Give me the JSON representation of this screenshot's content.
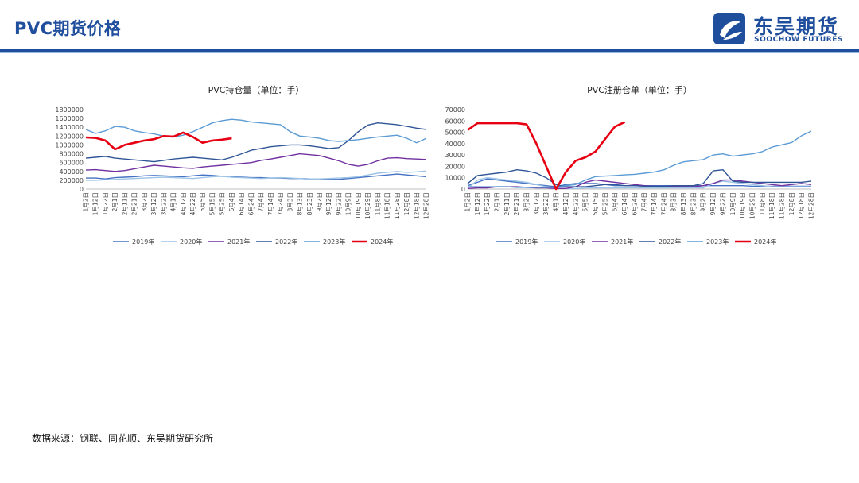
{
  "header": {
    "title": "PVC期货价格"
  },
  "logo": {
    "cn": "东吴期货",
    "en": "SOOCHOW FUTURES"
  },
  "source_note": "数据来源：钢联、同花顺、东吴期货研究所",
  "colors": {
    "2019年": "#4472c4",
    "2020年": "#9dc3e6",
    "2021年": "#7030a0",
    "2022年": "#2f5597",
    "2023年": "#5b9bd5",
    "2024年": "#e60012",
    "brand": "#1f4e9c"
  },
  "chart_data": [
    {
      "type": "line",
      "title": "PVC持仓量（单位：手）",
      "ylim": [
        0,
        1800000
      ],
      "yticks": [
        0,
        200000,
        400000,
        600000,
        800000,
        1000000,
        1200000,
        1400000,
        1600000,
        1800000
      ],
      "x_tick_labels": [
        "1月2日",
        "1月12日",
        "1月22日",
        "2月1日",
        "2月11日",
        "2月21日",
        "3月2日",
        "3月12日",
        "3月22日",
        "4月1日",
        "4月12日",
        "4月22日",
        "5月5日",
        "5月15日",
        "5月25日",
        "6月4日",
        "6月14日",
        "6月24日",
        "7月4日",
        "7月14日",
        "7月24日",
        "8月3日",
        "8月13日",
        "8月23日",
        "9月2日",
        "9月12日",
        "9月22日",
        "10月9日",
        "10月19日",
        "10月29日",
        "11月8日",
        "11月18日",
        "11月28日",
        "12月8日",
        "12月18日",
        "12月28日"
      ],
      "legend": [
        "2019年",
        "2020年",
        "2021年",
        "2022年",
        "2023年",
        "2024年"
      ],
      "legend_position": "bottom",
      "series": [
        {
          "name": "2019年",
          "values": [
            250000,
            250000,
            230000,
            260000,
            270000,
            280000,
            300000,
            310000,
            300000,
            290000,
            280000,
            300000,
            320000,
            310000,
            290000,
            280000,
            270000,
            260000,
            260000,
            250000,
            250000,
            240000,
            240000,
            230000,
            230000,
            220000,
            220000,
            240000,
            260000,
            280000,
            300000,
            320000,
            340000,
            320000,
            300000,
            280000
          ]
        },
        {
          "name": "2020年",
          "values": [
            200000,
            200000,
            210000,
            220000,
            230000,
            240000,
            250000,
            260000,
            270000,
            260000,
            250000,
            240000,
            260000,
            280000,
            290000,
            270000,
            260000,
            250000,
            240000,
            250000,
            260000,
            250000,
            240000,
            230000,
            230000,
            240000,
            250000,
            260000,
            280000,
            320000,
            360000,
            380000,
            400000,
            380000,
            390000,
            410000
          ]
        },
        {
          "name": "2021年",
          "values": [
            430000,
            440000,
            420000,
            400000,
            420000,
            460000,
            500000,
            540000,
            520000,
            500000,
            480000,
            470000,
            500000,
            520000,
            540000,
            560000,
            580000,
            600000,
            650000,
            680000,
            720000,
            760000,
            800000,
            780000,
            760000,
            700000,
            640000,
            560000,
            520000,
            560000,
            640000,
            700000,
            710000,
            690000,
            680000,
            670000
          ]
        },
        {
          "name": "2022年",
          "values": [
            700000,
            720000,
            740000,
            700000,
            680000,
            660000,
            640000,
            620000,
            650000,
            680000,
            700000,
            720000,
            700000,
            680000,
            660000,
            720000,
            800000,
            880000,
            920000,
            960000,
            980000,
            1000000,
            1000000,
            980000,
            950000,
            920000,
            940000,
            1100000,
            1300000,
            1450000,
            1500000,
            1480000,
            1460000,
            1420000,
            1380000,
            1350000
          ]
        },
        {
          "name": "2023年",
          "values": [
            1350000,
            1260000,
            1320000,
            1420000,
            1400000,
            1320000,
            1280000,
            1250000,
            1200000,
            1180000,
            1220000,
            1300000,
            1400000,
            1500000,
            1550000,
            1580000,
            1560000,
            1520000,
            1500000,
            1480000,
            1460000,
            1300000,
            1200000,
            1180000,
            1150000,
            1100000,
            1080000,
            1100000,
            1120000,
            1150000,
            1180000,
            1200000,
            1220000,
            1150000,
            1050000,
            1150000
          ]
        },
        {
          "name": "2024年",
          "values": [
            1170000,
            1160000,
            1100000,
            900000,
            1000000,
            1050000,
            1100000,
            1130000,
            1200000,
            1190000,
            1280000,
            1180000,
            1050000,
            1100000,
            1120000,
            1150000
          ]
        }
      ]
    },
    {
      "type": "line",
      "title": "PVC注册仓单（单位：手）",
      "ylim": [
        0,
        70000
      ],
      "yticks": [
        0,
        10000,
        20000,
        30000,
        40000,
        50000,
        60000,
        70000
      ],
      "x_tick_labels": [
        "1月2日",
        "1月12日",
        "1月22日",
        "2月1日",
        "2月11日",
        "2月21日",
        "3月2日",
        "3月12日",
        "3月22日",
        "4月1日",
        "4月12日",
        "4月22日",
        "5月5日",
        "5月15日",
        "5月25日",
        "6月4日",
        "6月14日",
        "6月24日",
        "7月4日",
        "7月14日",
        "7月24日",
        "8月3日",
        "8月13日",
        "8月23日",
        "9月2日",
        "9月12日",
        "9月22日",
        "10月9日",
        "10月19日",
        "10月29日",
        "11月8日",
        "11月18日",
        "11月28日",
        "12月8日",
        "12月18日",
        "12月28日"
      ],
      "legend": [
        "2019年",
        "2020年",
        "2021年",
        "2022年",
        "2023年",
        "2024年"
      ],
      "legend_position": "bottom",
      "series": [
        {
          "name": "2019年",
          "values": [
            3000,
            6000,
            9000,
            8000,
            7000,
            6000,
            5000,
            4000,
            3000,
            2000,
            4000,
            5000,
            5000,
            5000,
            4000,
            3000,
            3000,
            3000,
            3000,
            3000,
            3000,
            3000,
            3000,
            3000,
            3000,
            3000,
            3000,
            3000,
            3000,
            2500,
            2500,
            2500,
            2500,
            2500,
            2500,
            2500
          ]
        },
        {
          "name": "2020年",
          "values": [
            500,
            8000,
            10000,
            9000,
            8000,
            7000,
            6000,
            4000,
            2000,
            1000,
            500,
            500,
            1000,
            1000,
            1000,
            1000,
            1000,
            1000,
            1000,
            1000,
            1000,
            1000,
            1000,
            1000,
            1000,
            5000,
            7000,
            6000,
            5000,
            4000,
            3000,
            2000,
            2000,
            2000,
            2000,
            2000
          ]
        },
        {
          "name": "2021年",
          "values": [
            500,
            1000,
            1000,
            2000,
            2000,
            2000,
            1500,
            1000,
            1000,
            500,
            500,
            2000,
            6000,
            8000,
            7000,
            6000,
            5000,
            4000,
            3000,
            2500,
            2500,
            2500,
            2000,
            2000,
            3000,
            5000,
            8000,
            8000,
            7000,
            6000,
            5000,
            4000,
            3000,
            4000,
            5000,
            4000
          ]
        },
        {
          "name": "2022年",
          "values": [
            5000,
            12000,
            13000,
            14000,
            15000,
            17000,
            16000,
            14000,
            10000,
            4000,
            2000,
            2000,
            2000,
            3000,
            4000,
            4000,
            3000,
            3000,
            2500,
            2500,
            2500,
            3000,
            3000,
            3000,
            5000,
            16000,
            17000,
            7000,
            6000,
            6000,
            6000,
            6000,
            6000,
            6000,
            6000,
            7000
          ]
        },
        {
          "name": "2023年",
          "values": [
            2000,
            2000,
            2000,
            2000,
            2000,
            1500,
            1500,
            1500,
            1500,
            1500,
            3000,
            4000,
            8000,
            11000,
            11500,
            12000,
            12500,
            13000,
            14000,
            15000,
            17000,
            21000,
            24000,
            25000,
            26000,
            30000,
            31000,
            29000,
            30000,
            31000,
            33000,
            37000,
            39000,
            41000,
            47000,
            51000
          ]
        },
        {
          "name": "2024年",
          "values": [
            52000,
            58000,
            58000,
            58000,
            58000,
            58000,
            57000,
            40000,
            20000,
            0,
            15000,
            25000,
            28000,
            33000,
            44000,
            55000,
            59000
          ]
        }
      ]
    }
  ]
}
